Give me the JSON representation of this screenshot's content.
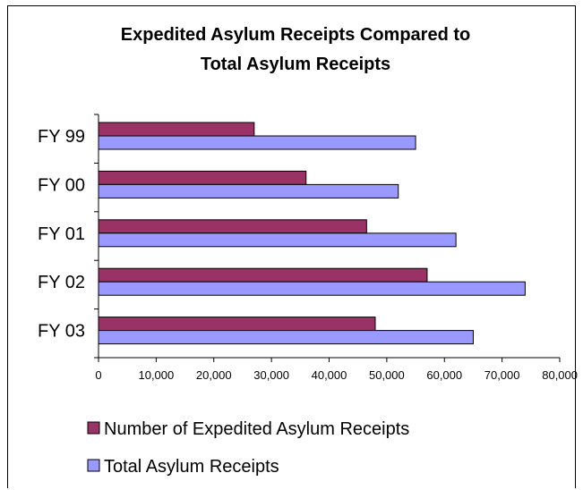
{
  "chart_data": {
    "type": "bar",
    "orientation": "horizontal",
    "title_lines": [
      "Expedited Asylum Receipts Compared to",
      "Total Asylum Receipts"
    ],
    "categories": [
      "FY 99",
      "FY 00",
      "FY 01",
      "FY 02",
      "FY 03"
    ],
    "series": [
      {
        "name": "Number of Expedited Asylum Receipts",
        "color": "#993366",
        "values": [
          27000,
          36000,
          46500,
          57000,
          48000
        ]
      },
      {
        "name": "Total Asylum Receipts",
        "color": "#9999FF",
        "values": [
          55000,
          52000,
          62000,
          74000,
          65000
        ]
      }
    ],
    "xlim": [
      0,
      80000
    ],
    "x_ticks": [
      0,
      10000,
      20000,
      30000,
      40000,
      50000,
      60000,
      70000,
      80000
    ],
    "x_tick_labels": [
      "0",
      "10,000",
      "20,000",
      "30,000",
      "40,000",
      "50,000",
      "60,000",
      "70,000",
      "80,000"
    ],
    "grid": false,
    "legend_position": "bottom-left"
  }
}
